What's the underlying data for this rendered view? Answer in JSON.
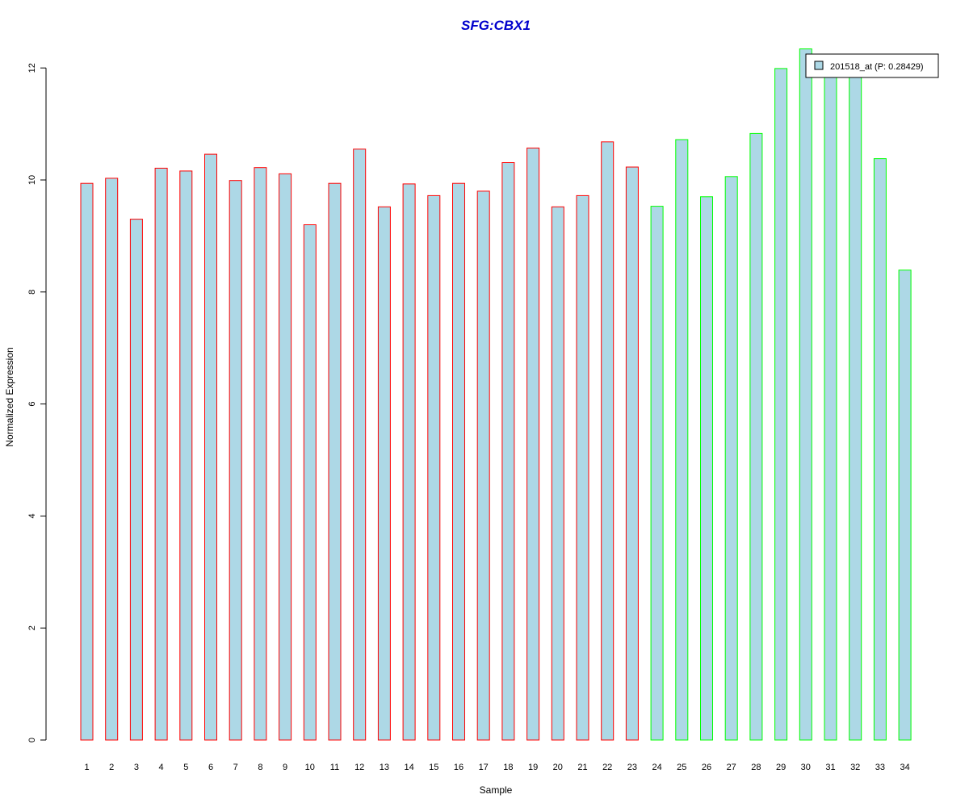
{
  "chart_data": {
    "type": "bar",
    "title": "SFG:CBX1",
    "xlabel": "Sample",
    "ylabel": "Normalized Expression",
    "categories": [
      "1",
      "2",
      "3",
      "4",
      "5",
      "6",
      "7",
      "8",
      "9",
      "10",
      "11",
      "12",
      "13",
      "14",
      "15",
      "16",
      "17",
      "18",
      "19",
      "20",
      "21",
      "22",
      "23",
      "24",
      "25",
      "26",
      "27",
      "28",
      "29",
      "30",
      "31",
      "32",
      "33",
      "34"
    ],
    "values": [
      9.94,
      10.03,
      9.3,
      10.21,
      10.16,
      10.46,
      9.99,
      10.22,
      10.11,
      9.2,
      9.94,
      10.55,
      9.52,
      9.93,
      9.72,
      9.94,
      9.8,
      10.31,
      10.57,
      9.52,
      9.72,
      10.68,
      10.23,
      9.53,
      10.72,
      9.7,
      10.06,
      10.83,
      11.99,
      12.34,
      11.9,
      11.9,
      10.38,
      8.39
    ],
    "groups": [
      "red",
      "red",
      "red",
      "red",
      "red",
      "red",
      "red",
      "red",
      "red",
      "red",
      "red",
      "red",
      "red",
      "red",
      "red",
      "red",
      "red",
      "red",
      "red",
      "red",
      "red",
      "red",
      "red",
      "green",
      "green",
      "green",
      "green",
      "green",
      "green",
      "green",
      "green",
      "green",
      "green",
      "green"
    ],
    "ylim": [
      0,
      12.5
    ],
    "yticks": [
      0,
      2,
      4,
      6,
      8,
      10,
      12
    ],
    "grid": false,
    "legend": {
      "placement": "top-right",
      "entries": [
        {
          "label": "201518_at (P: 0.28429)"
        }
      ]
    },
    "colors": {
      "title": "#0000cc",
      "bar_fill": "#add8e6",
      "red_border": "#ff0000",
      "green_border": "#00ff00",
      "axis": "#000000"
    }
  }
}
